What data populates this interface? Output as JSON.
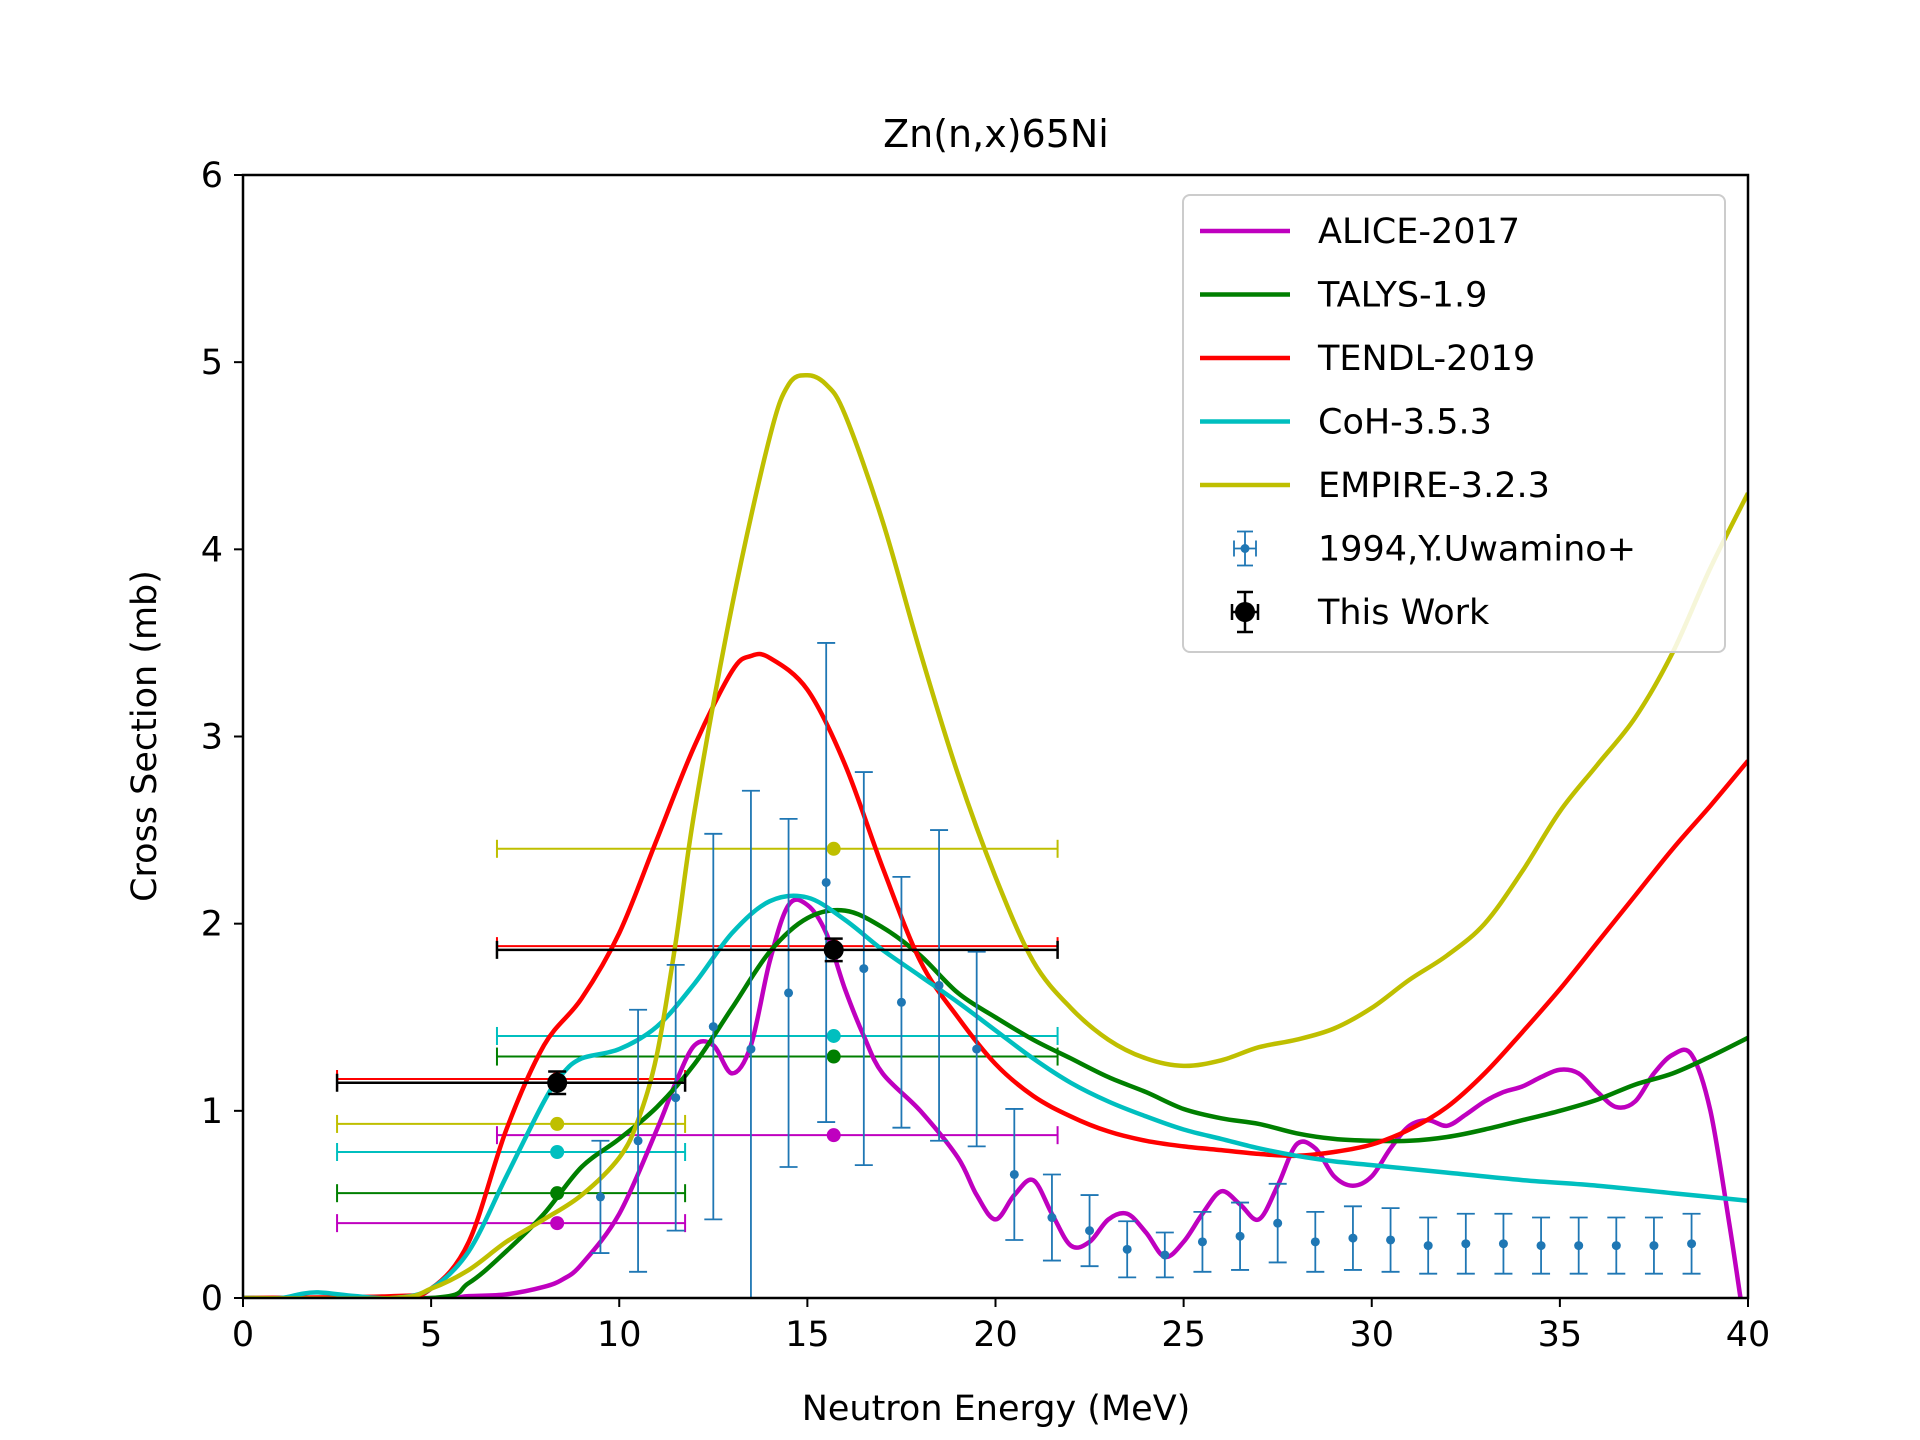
{
  "chart_data": {
    "type": "line",
    "title": "Zn(n,x)65Ni",
    "xlabel": "Neutron Energy (MeV)",
    "ylabel": "Cross Section (mb)",
    "xlim": [
      0,
      40
    ],
    "ylim": [
      0,
      6
    ],
    "xticks": [
      0,
      5,
      10,
      15,
      20,
      25,
      30,
      35,
      40
    ],
    "yticks": [
      0,
      1,
      2,
      3,
      4,
      5,
      6
    ],
    "grid": false,
    "legend_position": "top-right",
    "series": [
      {
        "name": "ALICE-2017",
        "color": "#bf00bf",
        "x": [
          0,
          5,
          6,
          7,
          8,
          8.5,
          9,
          10,
          11,
          11.5,
          12,
          12.5,
          13,
          13.5,
          14,
          14.5,
          15,
          15.5,
          16,
          16.5,
          17,
          18,
          19,
          19.5,
          20,
          20.5,
          21,
          21.5,
          22,
          22.5,
          23,
          23.5,
          24,
          24.5,
          25,
          25.5,
          26,
          26.5,
          27,
          27.5,
          28,
          28.5,
          29,
          29.5,
          30,
          30.5,
          31,
          31.5,
          32,
          32.5,
          33,
          33.5,
          34,
          34.5,
          35,
          35.5,
          36,
          36.5,
          37,
          37.5,
          38,
          38.5,
          39,
          39.5,
          39.8
        ],
        "y": [
          0,
          0,
          0.01,
          0.02,
          0.06,
          0.1,
          0.18,
          0.45,
          0.9,
          1.15,
          1.35,
          1.35,
          1.2,
          1.35,
          1.8,
          2.1,
          2.1,
          1.95,
          1.65,
          1.4,
          1.2,
          1.0,
          0.75,
          0.55,
          0.42,
          0.55,
          0.63,
          0.45,
          0.28,
          0.3,
          0.42,
          0.45,
          0.35,
          0.22,
          0.3,
          0.45,
          0.57,
          0.5,
          0.42,
          0.6,
          0.82,
          0.8,
          0.65,
          0.6,
          0.65,
          0.8,
          0.92,
          0.95,
          0.92,
          0.98,
          1.05,
          1.1,
          1.13,
          1.18,
          1.22,
          1.2,
          1.1,
          1.02,
          1.05,
          1.2,
          1.3,
          1.3,
          1.0,
          0.4,
          0.0
        ]
      },
      {
        "name": "TALYS-1.9",
        "color": "#007f00",
        "x": [
          0,
          5,
          6,
          7,
          8,
          9,
          10,
          11,
          12,
          13,
          14,
          15,
          16,
          17,
          18,
          19,
          20,
          21,
          22,
          23,
          24,
          25,
          26,
          27,
          28,
          29,
          30,
          31,
          32,
          33,
          34,
          35,
          36,
          37,
          38,
          39,
          40
        ],
        "y": [
          0,
          0,
          0.08,
          0.25,
          0.45,
          0.7,
          0.85,
          1.02,
          1.25,
          1.55,
          1.85,
          2.03,
          2.07,
          1.98,
          1.83,
          1.63,
          1.5,
          1.38,
          1.28,
          1.18,
          1.1,
          1.01,
          0.96,
          0.93,
          0.88,
          0.85,
          0.84,
          0.84,
          0.86,
          0.9,
          0.95,
          1.0,
          1.06,
          1.14,
          1.2,
          1.29,
          1.39
        ]
      },
      {
        "name": "TENDL-2019",
        "color": "#ff0000",
        "x": [
          0,
          4,
          5,
          6,
          7,
          8,
          9,
          10,
          11,
          12,
          13,
          13.5,
          14,
          15,
          16,
          17,
          18,
          19,
          20,
          21,
          22,
          23,
          24,
          25,
          26,
          27,
          28,
          29,
          30,
          31,
          32,
          33,
          34,
          35,
          36,
          37,
          38,
          39,
          40
        ],
        "y": [
          0,
          0.01,
          0.05,
          0.3,
          0.9,
          1.35,
          1.6,
          1.95,
          2.45,
          2.95,
          3.35,
          3.43,
          3.42,
          3.25,
          2.85,
          2.3,
          1.8,
          1.5,
          1.25,
          1.08,
          0.97,
          0.89,
          0.84,
          0.81,
          0.79,
          0.77,
          0.76,
          0.78,
          0.82,
          0.9,
          1.02,
          1.2,
          1.42,
          1.65,
          1.9,
          2.15,
          2.4,
          2.63,
          2.87
        ]
      },
      {
        "name": "CoH-3.5.3",
        "color": "#00bfbf",
        "x": [
          0,
          1,
          1.5,
          2,
          3,
          4,
          5,
          6,
          7,
          8,
          8.5,
          9,
          10,
          11,
          12,
          13,
          14,
          15,
          16,
          17,
          18,
          19,
          20,
          21,
          22,
          23,
          24,
          25,
          26,
          27,
          28,
          29,
          30,
          32,
          34,
          36,
          38,
          40
        ],
        "y": [
          0,
          0,
          0.02,
          0.03,
          0.01,
          0.0,
          0.05,
          0.25,
          0.65,
          1.05,
          1.2,
          1.28,
          1.33,
          1.45,
          1.68,
          1.95,
          2.12,
          2.14,
          2.02,
          1.86,
          1.72,
          1.58,
          1.43,
          1.28,
          1.15,
          1.05,
          0.97,
          0.9,
          0.85,
          0.8,
          0.76,
          0.73,
          0.71,
          0.67,
          0.63,
          0.6,
          0.56,
          0.52
        ]
      },
      {
        "name": "EMPIRE-3.2.3",
        "color": "#bfbf00",
        "x": [
          0,
          4,
          5,
          6,
          7,
          8,
          9,
          10,
          10.5,
          11,
          11.5,
          12,
          13,
          14,
          14.5,
          15,
          15.5,
          16,
          17,
          18,
          19,
          20,
          21,
          22,
          23,
          24,
          25,
          26,
          27,
          28,
          29,
          30,
          31,
          32,
          33,
          34,
          35,
          36,
          37,
          38,
          39,
          40
        ],
        "y": [
          0,
          0,
          0.05,
          0.15,
          0.3,
          0.42,
          0.55,
          0.75,
          0.95,
          1.3,
          1.9,
          2.6,
          3.7,
          4.6,
          4.88,
          4.93,
          4.88,
          4.72,
          4.15,
          3.45,
          2.8,
          2.25,
          1.8,
          1.55,
          1.38,
          1.28,
          1.24,
          1.27,
          1.34,
          1.38,
          1.44,
          1.55,
          1.7,
          1.83,
          2.0,
          2.28,
          2.6,
          2.85,
          3.1,
          3.45,
          3.9,
          4.3
        ]
      }
    ],
    "reference_data": {
      "name": "1994,Y.Uwamino+",
      "color": "#1f77b4",
      "points": [
        {
          "x": 9.5,
          "y": 0.54,
          "yerr": 0.3
        },
        {
          "x": 10.5,
          "y": 0.84,
          "yerr": 0.7
        },
        {
          "x": 11.5,
          "y": 1.07,
          "yerr": 0.71
        },
        {
          "x": 12.5,
          "y": 1.45,
          "yerr": 1.03
        },
        {
          "x": 13.5,
          "y": 1.33,
          "yerr": 1.38
        },
        {
          "x": 14.5,
          "y": 1.63,
          "yerr": 0.93
        },
        {
          "x": 15.5,
          "y": 2.22,
          "yerr": 1.28
        },
        {
          "x": 16.5,
          "y": 1.76,
          "yerr": 1.05
        },
        {
          "x": 17.5,
          "y": 1.58,
          "yerr": 0.67
        },
        {
          "x": 18.5,
          "y": 1.67,
          "yerr": 0.83
        },
        {
          "x": 19.5,
          "y": 1.33,
          "yerr": 0.52
        },
        {
          "x": 20.5,
          "y": 0.66,
          "yerr": 0.35
        },
        {
          "x": 21.5,
          "y": 0.43,
          "yerr": 0.23
        },
        {
          "x": 22.5,
          "y": 0.36,
          "yerr": 0.19
        },
        {
          "x": 23.5,
          "y": 0.26,
          "yerr": 0.15
        },
        {
          "x": 24.5,
          "y": 0.23,
          "yerr": 0.12
        },
        {
          "x": 25.5,
          "y": 0.3,
          "yerr": 0.16
        },
        {
          "x": 26.5,
          "y": 0.33,
          "yerr": 0.18
        },
        {
          "x": 27.5,
          "y": 0.4,
          "yerr": 0.21
        },
        {
          "x": 28.5,
          "y": 0.3,
          "yerr": 0.16
        },
        {
          "x": 29.5,
          "y": 0.32,
          "yerr": 0.17
        },
        {
          "x": 30.5,
          "y": 0.31,
          "yerr": 0.17
        },
        {
          "x": 31.5,
          "y": 0.28,
          "yerr": 0.15
        },
        {
          "x": 32.5,
          "y": 0.29,
          "yerr": 0.16
        },
        {
          "x": 33.5,
          "y": 0.29,
          "yerr": 0.16
        },
        {
          "x": 34.5,
          "y": 0.28,
          "yerr": 0.15
        },
        {
          "x": 35.5,
          "y": 0.28,
          "yerr": 0.15
        },
        {
          "x": 36.5,
          "y": 0.28,
          "yerr": 0.15
        },
        {
          "x": 37.5,
          "y": 0.28,
          "yerr": 0.15
        },
        {
          "x": 38.5,
          "y": 0.29,
          "yerr": 0.16
        }
      ]
    },
    "this_work": {
      "name": "This Work",
      "color": "#000000",
      "points": [
        {
          "x": 8.35,
          "y": 1.15,
          "xerr": [
            5.85,
            3.4
          ],
          "yerr": 0.06
        },
        {
          "x": 15.7,
          "y": 1.86,
          "xerr": [
            8.95,
            5.95
          ],
          "yerr": 0.06
        }
      ]
    },
    "model_averages": [
      {
        "series": "ALICE-2017",
        "color": "#bf00bf",
        "points": [
          {
            "x": 8.35,
            "y": 0.4,
            "xerr": [
              5.85,
              3.4
            ]
          },
          {
            "x": 15.7,
            "y": 0.87,
            "xerr": [
              8.95,
              5.95
            ]
          }
        ]
      },
      {
        "series": "TALYS-1.9",
        "color": "#007f00",
        "points": [
          {
            "x": 8.35,
            "y": 0.56,
            "xerr": [
              5.85,
              3.4
            ]
          },
          {
            "x": 15.7,
            "y": 1.29,
            "xerr": [
              8.95,
              5.95
            ]
          }
        ]
      },
      {
        "series": "TENDL-2019",
        "color": "#ff0000",
        "points": [
          {
            "x": 8.35,
            "y": 1.17,
            "xerr": [
              5.85,
              3.4
            ]
          },
          {
            "x": 15.7,
            "y": 1.88,
            "xerr": [
              8.95,
              5.95
            ]
          }
        ]
      },
      {
        "series": "CoH-3.5.3",
        "color": "#00bfbf",
        "points": [
          {
            "x": 8.35,
            "y": 0.78,
            "xerr": [
              5.85,
              3.4
            ]
          },
          {
            "x": 15.7,
            "y": 1.4,
            "xerr": [
              8.95,
              5.95
            ]
          }
        ]
      },
      {
        "series": "EMPIRE-3.2.3",
        "color": "#bfbf00",
        "points": [
          {
            "x": 8.35,
            "y": 0.93,
            "xerr": [
              5.85,
              3.4
            ]
          },
          {
            "x": 15.7,
            "y": 2.4,
            "xerr": [
              8.95,
              5.95
            ]
          }
        ]
      }
    ],
    "legend": [
      {
        "label": "ALICE-2017",
        "color": "#bf00bf",
        "kind": "line"
      },
      {
        "label": "TALYS-1.9",
        "color": "#007f00",
        "kind": "line"
      },
      {
        "label": "TENDL-2019",
        "color": "#ff0000",
        "kind": "line"
      },
      {
        "label": "CoH-3.5.3",
        "color": "#00bfbf",
        "kind": "line"
      },
      {
        "label": "EMPIRE-3.2.3",
        "color": "#bfbf00",
        "kind": "line"
      },
      {
        "label": "1994,Y.Uwamino+",
        "color": "#1f77b4",
        "kind": "errorbar-small"
      },
      {
        "label": "This Work",
        "color": "#000000",
        "kind": "errorbar-large"
      }
    ]
  }
}
